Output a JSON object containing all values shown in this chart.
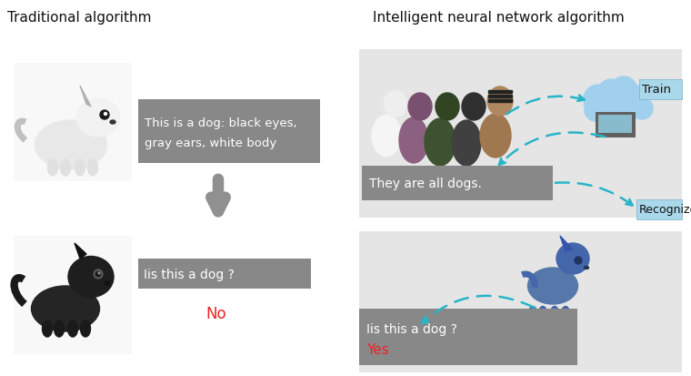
{
  "bg_color": "#ffffff",
  "title_left": "Traditional algorithm",
  "title_right": "Intelligent neural network algorithm",
  "title_fontsize": 11,
  "box_color": "#888888",
  "box_text_color": "#ffffff",
  "box1_line1": "This is a dog: black eyes,",
  "box1_line2": "gray ears, white body",
  "box2_text": "Iis this a dog ?",
  "box3_text": "They are all dogs.",
  "box4_line1": "Iis this a dog ?",
  "box4_line2": "Yes",
  "no_text": "No",
  "yes_text": "Yes",
  "no_color": "#ee2222",
  "yes_color": "#ee2222",
  "train_label": "Train",
  "recognize_label": "Recognize",
  "train_box_color": "#a8d8ea",
  "recognize_box_color": "#a8d8ea",
  "arrow_color": "#909090",
  "dashed_arrow_color": "#28b5c8",
  "panel_bg": "#e5e5e5",
  "cloud_color": "#a0d0ee"
}
